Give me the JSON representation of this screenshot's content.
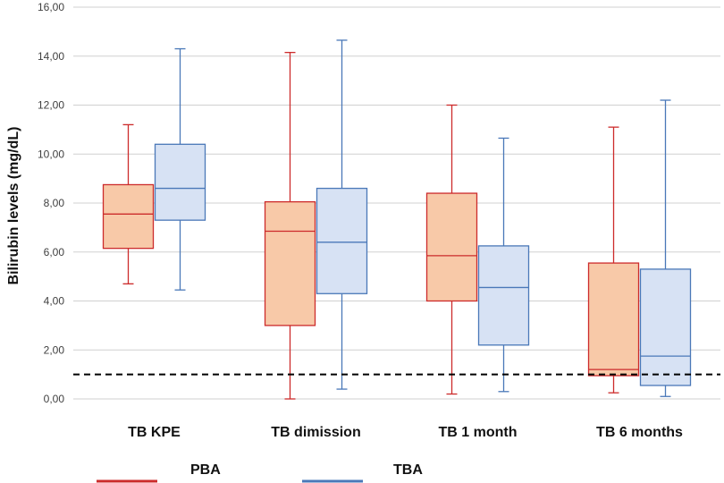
{
  "chart_data": {
    "type": "boxplot",
    "title": "",
    "xlabel": "",
    "ylabel": "Bilirubin levels (mg/dL)",
    "ylim": [
      0,
      16
    ],
    "ytick_values": [
      0,
      2,
      4,
      6,
      8,
      10,
      12,
      14,
      16
    ],
    "yticks": [
      "0,00",
      "2,00",
      "4,00",
      "6,00",
      "8,00",
      "10,00",
      "12,00",
      "14,00",
      "16,00"
    ],
    "grid": true,
    "categories": [
      "TB KPE",
      "TB dimission",
      "TB 1 month",
      "TB 6 months"
    ],
    "reference_line": {
      "y": 1.0,
      "style": "dashed"
    },
    "series": [
      {
        "name": "PBA",
        "line_color": "#cc2b2b",
        "fill_color": "#f8c9a8",
        "boxes": [
          {
            "min": 4.7,
            "q1": 6.15,
            "median": 7.55,
            "q3": 8.75,
            "max": 11.2
          },
          {
            "min": 0.0,
            "q1": 3.0,
            "median": 6.85,
            "q3": 8.05,
            "max": 14.15
          },
          {
            "min": 0.2,
            "q1": 4.0,
            "median": 5.85,
            "q3": 8.4,
            "max": 12.0
          },
          {
            "min": 0.25,
            "q1": 0.95,
            "median": 1.2,
            "q3": 5.55,
            "max": 11.1
          }
        ]
      },
      {
        "name": "TBA",
        "line_color": "#4a78b8",
        "fill_color": "#d7e2f4",
        "boxes": [
          {
            "min": 4.45,
            "q1": 7.3,
            "median": 8.6,
            "q3": 10.4,
            "max": 14.3
          },
          {
            "min": 0.4,
            "q1": 4.3,
            "median": 6.4,
            "q3": 8.6,
            "max": 14.65
          },
          {
            "min": 0.3,
            "q1": 2.2,
            "median": 4.55,
            "q3": 6.25,
            "max": 10.65
          },
          {
            "min": 0.1,
            "q1": 0.55,
            "median": 1.75,
            "q3": 5.3,
            "max": 12.2
          }
        ]
      }
    ]
  }
}
